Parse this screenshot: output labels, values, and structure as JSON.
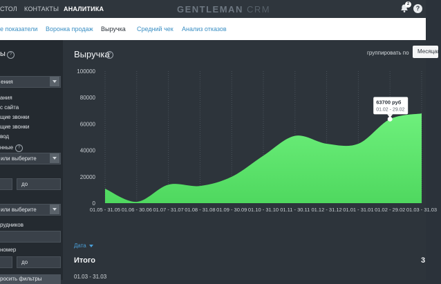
{
  "topbar": {
    "nav": [
      "СТОЛ",
      "КОНТАКТЫ",
      "АНАЛИТИКА"
    ],
    "active": "АНАЛИТИКА",
    "brand": "GENTLEMAN",
    "brand_suffix": "CRM",
    "notifications_count": "2",
    "help": "?"
  },
  "subnav": {
    "tabs": [
      "е показатели",
      "Воронка продаж",
      "Выручка",
      "Средний чек",
      "Анализ отказов"
    ],
    "active": "Выручка"
  },
  "sidebar": {
    "header": "ы",
    "help": "?",
    "select1_value": "ения",
    "options": [
      "ания",
      "с сайта",
      "щие звонки",
      "щие звонки",
      "вод"
    ],
    "section2": "нные",
    "select2_value": "или выберите",
    "range1_to": "до",
    "select3_value": "или выберите",
    "section_employees": "рудников",
    "section_number": "номер",
    "range2_to": "до",
    "reset_button": "росить фильтры"
  },
  "main": {
    "title": "Выручка",
    "help": "?",
    "group_by_label": "группировать по",
    "group_by_value": "Месяцам",
    "date_link": "Дата",
    "total_label": "Итого",
    "total_value": "3",
    "period": "01.03 - 31.03"
  },
  "colors": {
    "area_fill": "#5be06c",
    "area_fill_top": "#6ef07c",
    "link": "#3a8fc4",
    "background": "#2d343b"
  },
  "chart_data": {
    "type": "area",
    "title": "Выручка",
    "categories": [
      "01.05 - 31.05",
      "01.06 - 30.06",
      "01.07 - 31.07",
      "01.08 - 31.08",
      "01.09 - 30.09",
      "01.10 - 31.10",
      "01.11 - 30.11",
      "01.12 - 31.12",
      "01.01 - 31.01",
      "01.02 - 29.02",
      "01.03 - 31.03"
    ],
    "values": [
      11000,
      1000,
      14000,
      13000,
      20000,
      36000,
      51000,
      45000,
      45000,
      63700,
      68000
    ],
    "ylim": [
      0,
      100000
    ],
    "yticks": [
      "0",
      "20000",
      "40000",
      "60000",
      "80000",
      "100000"
    ],
    "grid": "vertical dotted",
    "tooltip": {
      "value": "63700 руб",
      "period": "01.02 - 29.02"
    },
    "xlabel": "",
    "ylabel": ""
  }
}
